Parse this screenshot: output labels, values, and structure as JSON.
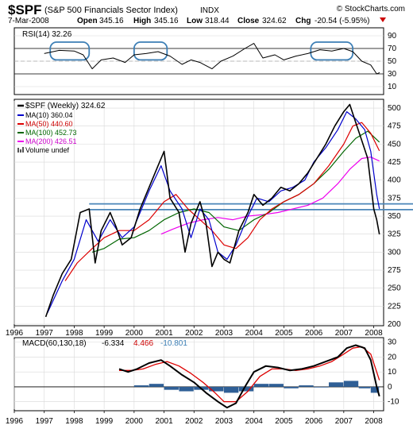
{
  "header": {
    "symbol": "$SPF",
    "name": "(S&P 500 Financials Sector Index)",
    "exchange": "INDX",
    "credit": "© StockCharts.com",
    "date": "7-Mar-2008",
    "quote": {
      "open_label": "Open",
      "open": "345.16",
      "high_label": "High",
      "high": "345.16",
      "low_label": "Low",
      "low": "318.44",
      "close_label": "Close",
      "close": "324.62",
      "chg_label": "Chg",
      "chg": "-20.54 (-5.95%)"
    }
  },
  "colors": {
    "price": "#000000",
    "ma10": "#0000cc",
    "ma50": "#dd0000",
    "ma100": "#006600",
    "ma200": "#ee00ee",
    "trendline": "#4a86b8",
    "rsi_circle": "#3d7fb5",
    "histogram": "#2f5f96",
    "grid": "#d8d8d8",
    "chg": "#cc0000"
  },
  "chart_data": [
    {
      "type": "line",
      "panel": "RSI",
      "legend": "RSI(14) 32.26",
      "ylim": [
        0,
        100
      ],
      "ticks": [
        "90",
        "70",
        "50",
        "30",
        "10"
      ],
      "reference_levels": [
        70,
        30
      ],
      "highlight_years": [
        [
          1997.2,
          1998.5
        ],
        [
          2000.0,
          2001.1
        ],
        [
          2005.9,
          2007.3
        ]
      ],
      "series": [
        {
          "x": [
            1997.0,
            1997.5,
            1998.0,
            1998.3,
            1998.6,
            1998.9,
            1999.3,
            1999.7,
            2000.0,
            2000.4,
            2000.8,
            2001.2,
            2001.6,
            2001.9,
            2002.2,
            2002.6,
            2002.9,
            2003.3,
            2003.7,
            2004.0,
            2004.3,
            2004.7,
            2005.0,
            2005.4,
            2005.8,
            2006.2,
            2006.6,
            2007.0,
            2007.3,
            2007.6,
            2007.9,
            2008.1,
            2008.2
          ],
          "values": [
            62,
            67,
            66,
            60,
            38,
            52,
            55,
            48,
            60,
            62,
            65,
            58,
            45,
            52,
            48,
            38,
            50,
            58,
            70,
            78,
            55,
            60,
            52,
            58,
            62,
            68,
            66,
            70,
            65,
            50,
            44,
            30,
            32
          ]
        }
      ]
    },
    {
      "type": "line",
      "panel": "price",
      "legend": [
        "$SPF (Weekly) 324.62",
        "MA(10) 360.04",
        "MA(50) 440.60",
        "MA(100) 452.73",
        "MA(200) 426.51",
        "Volume undef"
      ],
      "ylim": [
        200,
        510
      ],
      "ticks": [
        "500",
        "475",
        "450",
        "425",
        "400",
        "375",
        "350",
        "325",
        "300",
        "275",
        "250",
        "225",
        "200"
      ],
      "xticks": [
        "1996",
        "1997",
        "1998",
        "1999",
        "2000",
        "2001",
        "2002",
        "2003",
        "2004",
        "2005",
        "2006",
        "2007",
        "2008"
      ],
      "horizontal_lines": [
        367,
        359
      ],
      "series": [
        {
          "name": "$SPF (Weekly)",
          "x": [
            1997.05,
            1997.3,
            1997.6,
            1997.9,
            1998.2,
            1998.5,
            1998.7,
            1998.9,
            1999.2,
            1999.4,
            1999.6,
            1999.9,
            2000.2,
            2000.5,
            2000.8,
            2001.0,
            2001.2,
            2001.5,
            2001.7,
            2001.9,
            2002.2,
            2002.4,
            2002.6,
            2002.8,
            2003.0,
            2003.2,
            2003.5,
            2003.8,
            2004.0,
            2004.3,
            2004.6,
            2004.9,
            2005.2,
            2005.5,
            2005.8,
            2006.1,
            2006.4,
            2006.7,
            2007.0,
            2007.2,
            2007.4,
            2007.6,
            2007.8,
            2008.0,
            2008.1,
            2008.19
          ],
          "values": [
            210,
            240,
            270,
            290,
            355,
            360,
            285,
            330,
            355,
            335,
            310,
            320,
            360,
            390,
            420,
            440,
            375,
            355,
            300,
            340,
            370,
            340,
            280,
            300,
            290,
            285,
            330,
            355,
            380,
            365,
            375,
            390,
            385,
            395,
            410,
            430,
            450,
            475,
            495,
            505,
            480,
            455,
            430,
            360,
            345,
            324.62
          ]
        },
        {
          "name": "MA(10)",
          "x": [
            1997.1,
            1997.6,
            1998.0,
            1998.4,
            1998.8,
            1999.2,
            1999.6,
            2000.0,
            2000.5,
            2000.9,
            2001.2,
            2001.6,
            2001.9,
            2002.2,
            2002.5,
            2002.8,
            2003.1,
            2003.4,
            2003.8,
            2004.1,
            2004.5,
            2004.9,
            2005.3,
            2005.7,
            2006.0,
            2006.4,
            2006.8,
            2007.1,
            2007.4,
            2007.7,
            2007.9,
            2008.1,
            2008.19
          ],
          "values": [
            215,
            260,
            290,
            345,
            315,
            345,
            320,
            335,
            385,
            420,
            385,
            360,
            320,
            360,
            345,
            300,
            290,
            310,
            350,
            375,
            370,
            385,
            390,
            400,
            425,
            445,
            470,
            495,
            485,
            470,
            440,
            380,
            360.04
          ]
        },
        {
          "name": "MA(50)",
          "x": [
            1997.7,
            1998.1,
            1998.6,
            1999.0,
            1999.5,
            2000.0,
            2000.5,
            2001.0,
            2001.4,
            2001.8,
            2002.2,
            2002.6,
            2003.0,
            2003.4,
            2003.8,
            2004.2,
            2004.6,
            2005.0,
            2005.5,
            2006.0,
            2006.5,
            2007.0,
            2007.3,
            2007.6,
            2007.9,
            2008.19
          ],
          "values": [
            260,
            285,
            305,
            320,
            330,
            330,
            345,
            370,
            380,
            360,
            345,
            330,
            310,
            305,
            320,
            345,
            360,
            370,
            380,
            395,
            420,
            450,
            475,
            480,
            465,
            440.6
          ]
        },
        {
          "name": "MA(100)",
          "x": [
            1998.6,
            1999.0,
            1999.5,
            2000.0,
            2000.5,
            2001.0,
            2001.5,
            2002.0,
            2002.5,
            2003.0,
            2003.5,
            2004.0,
            2004.5,
            2005.0,
            2005.5,
            2006.0,
            2006.5,
            2007.0,
            2007.4,
            2007.8,
            2008.19
          ],
          "values": [
            300,
            305,
            318,
            320,
            330,
            345,
            355,
            360,
            355,
            335,
            330,
            345,
            355,
            370,
            380,
            395,
            415,
            440,
            458,
            468,
            452.73
          ]
        },
        {
          "name": "MA(200)",
          "x": [
            2000.9,
            2001.3,
            2001.8,
            2002.3,
            2002.8,
            2003.3,
            2003.8,
            2004.3,
            2004.8,
            2005.3,
            2005.8,
            2006.3,
            2006.8,
            2007.2,
            2007.6,
            2007.9,
            2008.19
          ],
          "values": [
            325,
            332,
            340,
            345,
            348,
            345,
            350,
            352,
            355,
            360,
            365,
            375,
            395,
            415,
            430,
            432,
            426.51
          ]
        }
      ]
    },
    {
      "type": "line",
      "panel": "MACD",
      "legend_label": "MACD(60,130,18)",
      "legend_values": [
        "-6.334",
        "4.466",
        "-10.801"
      ],
      "ylim": [
        -15,
        32
      ],
      "ticks": [
        "30",
        "20",
        "10",
        "0",
        "-10"
      ],
      "xticks": [
        "1996",
        "1997",
        "1998",
        "1999",
        "2000",
        "2001",
        "2002",
        "2003",
        "2004",
        "2005",
        "2006",
        "2007",
        "2008"
      ],
      "series": [
        {
          "name": "MACD",
          "x": [
            1999.5,
            1999.8,
            2000.1,
            2000.5,
            2000.9,
            2001.2,
            2001.6,
            2002.0,
            2002.4,
            2002.8,
            2003.1,
            2003.4,
            2003.7,
            2004.0,
            2004.4,
            2004.8,
            2005.2,
            2005.6,
            2006.0,
            2006.4,
            2006.8,
            2007.1,
            2007.4,
            2007.7,
            2007.9,
            2008.1,
            2008.19
          ],
          "values": [
            12,
            10,
            12,
            16,
            18,
            14,
            8,
            3,
            -4,
            -10,
            -14,
            -11,
            0,
            10,
            14,
            13,
            11,
            12,
            14,
            17,
            20,
            26,
            28,
            26,
            18,
            0,
            -6.334
          ]
        },
        {
          "name": "Signal",
          "x": [
            1999.5,
            1999.9,
            2000.3,
            2000.7,
            2001.1,
            2001.5,
            2001.9,
            2002.3,
            2002.7,
            2003.0,
            2003.4,
            2003.8,
            2004.2,
            2004.6,
            2005.0,
            2005.4,
            2005.8,
            2006.2,
            2006.6,
            2007.0,
            2007.3,
            2007.6,
            2007.9,
            2008.1,
            2008.19
          ],
          "values": [
            11,
            11,
            12,
            15,
            17,
            14,
            9,
            3,
            -4,
            -10,
            -10,
            -3,
            7,
            12,
            12,
            11,
            12,
            14,
            17,
            22,
            26,
            27,
            22,
            10,
            4.466
          ]
        },
        {
          "name": "Histogram",
          "x": [
            2000.0,
            2000.5,
            2001.0,
            2001.5,
            2002.0,
            2002.5,
            2003.0,
            2003.5,
            2004.0,
            2004.5,
            2005.0,
            2005.5,
            2006.0,
            2006.5,
            2007.0,
            2007.5,
            2007.9,
            2008.19
          ],
          "values": [
            1,
            2,
            -2,
            -3,
            -2,
            -3,
            -4,
            -3,
            2,
            2,
            -1,
            1,
            0,
            3,
            4,
            -1,
            -4,
            -10.801
          ]
        }
      ]
    }
  ]
}
